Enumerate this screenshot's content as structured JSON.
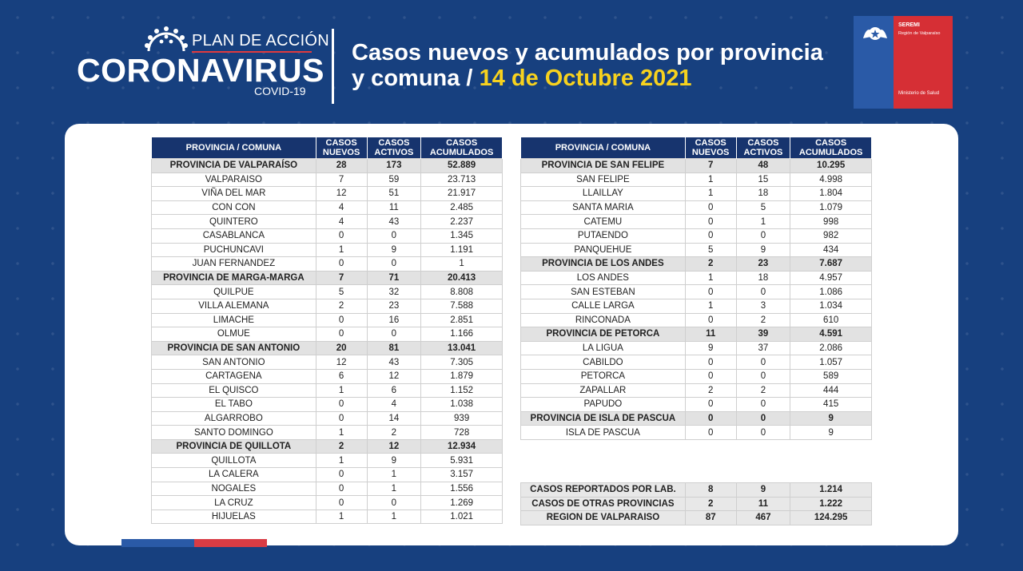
{
  "header": {
    "logo": {
      "plan": "PLAN DE ACCIÓN",
      "main": "CORONAVIRUS",
      "sub": "COVID-19"
    },
    "title_line1": "Casos nuevos y acumulados por provincia",
    "title_line2_prefix": "y comuna /",
    "title_date": "14 de Octubre 2021",
    "seremi": {
      "name": "SEREMI",
      "region": "Región de Valparaíso",
      "ministry": "Ministerio de Salud"
    }
  },
  "columns": [
    "PROVINCIA / COMUNA",
    "CASOS NUEVOS",
    "CASOS ACTIVOS",
    "CASOS ACUMULADOS"
  ],
  "left_rows": [
    {
      "name": "PROVINCIA DE VALPARAÍSO",
      "nuevos": "28",
      "activos": "173",
      "acumulados": "52.889",
      "province": true
    },
    {
      "name": "VALPARAISO",
      "nuevos": "7",
      "activos": "59",
      "acumulados": "23.713"
    },
    {
      "name": "VIÑA DEL MAR",
      "nuevos": "12",
      "activos": "51",
      "acumulados": "21.917"
    },
    {
      "name": "CON CON",
      "nuevos": "4",
      "activos": "11",
      "acumulados": "2.485"
    },
    {
      "name": "QUINTERO",
      "nuevos": "4",
      "activos": "43",
      "acumulados": "2.237"
    },
    {
      "name": "CASABLANCA",
      "nuevos": "0",
      "activos": "0",
      "acumulados": "1.345"
    },
    {
      "name": "PUCHUNCAVI",
      "nuevos": "1",
      "activos": "9",
      "acumulados": "1.191"
    },
    {
      "name": "JUAN FERNANDEZ",
      "nuevos": "0",
      "activos": "0",
      "acumulados": "1"
    },
    {
      "name": "PROVINCIA DE MARGA-MARGA",
      "nuevos": "7",
      "activos": "71",
      "acumulados": "20.413",
      "province": true
    },
    {
      "name": "QUILPUE",
      "nuevos": "5",
      "activos": "32",
      "acumulados": "8.808"
    },
    {
      "name": "VILLA ALEMANA",
      "nuevos": "2",
      "activos": "23",
      "acumulados": "7.588"
    },
    {
      "name": "LIMACHE",
      "nuevos": "0",
      "activos": "16",
      "acumulados": "2.851"
    },
    {
      "name": "OLMUE",
      "nuevos": "0",
      "activos": "0",
      "acumulados": "1.166"
    },
    {
      "name": "PROVINCIA DE SAN ANTONIO",
      "nuevos": "20",
      "activos": "81",
      "acumulados": "13.041",
      "province": true
    },
    {
      "name": "SAN ANTONIO",
      "nuevos": "12",
      "activos": "43",
      "acumulados": "7.305"
    },
    {
      "name": "CARTAGENA",
      "nuevos": "6",
      "activos": "12",
      "acumulados": "1.879"
    },
    {
      "name": "EL QUISCO",
      "nuevos": "1",
      "activos": "6",
      "acumulados": "1.152"
    },
    {
      "name": "EL TABO",
      "nuevos": "0",
      "activos": "4",
      "acumulados": "1.038"
    },
    {
      "name": "ALGARROBO",
      "nuevos": "0",
      "activos": "14",
      "acumulados": "939"
    },
    {
      "name": "SANTO DOMINGO",
      "nuevos": "1",
      "activos": "2",
      "acumulados": "728"
    },
    {
      "name": "PROVINCIA DE QUILLOTA",
      "nuevos": "2",
      "activos": "12",
      "acumulados": "12.934",
      "province": true
    },
    {
      "name": "QUILLOTA",
      "nuevos": "1",
      "activos": "9",
      "acumulados": "5.931"
    },
    {
      "name": "LA CALERA",
      "nuevos": "0",
      "activos": "1",
      "acumulados": "3.157"
    },
    {
      "name": "NOGALES",
      "nuevos": "0",
      "activos": "1",
      "acumulados": "1.556"
    },
    {
      "name": "LA CRUZ",
      "nuevos": "0",
      "activos": "0",
      "acumulados": "1.269"
    },
    {
      "name": "HIJUELAS",
      "nuevos": "1",
      "activos": "1",
      "acumulados": "1.021"
    }
  ],
  "right_rows": [
    {
      "name": "PROVINCIA DE SAN FELIPE",
      "nuevos": "7",
      "activos": "48",
      "acumulados": "10.295",
      "province": true
    },
    {
      "name": "SAN FELIPE",
      "nuevos": "1",
      "activos": "15",
      "acumulados": "4.998"
    },
    {
      "name": "LLAILLAY",
      "nuevos": "1",
      "activos": "18",
      "acumulados": "1.804"
    },
    {
      "name": "SANTA MARIA",
      "nuevos": "0",
      "activos": "5",
      "acumulados": "1.079"
    },
    {
      "name": "CATEMU",
      "nuevos": "0",
      "activos": "1",
      "acumulados": "998"
    },
    {
      "name": "PUTAENDO",
      "nuevos": "0",
      "activos": "0",
      "acumulados": "982"
    },
    {
      "name": "PANQUEHUE",
      "nuevos": "5",
      "activos": "9",
      "acumulados": "434"
    },
    {
      "name": "PROVINCIA DE LOS ANDES",
      "nuevos": "2",
      "activos": "23",
      "acumulados": "7.687",
      "province": true
    },
    {
      "name": "LOS ANDES",
      "nuevos": "1",
      "activos": "18",
      "acumulados": "4.957"
    },
    {
      "name": "SAN ESTEBAN",
      "nuevos": "0",
      "activos": "0",
      "acumulados": "1.086"
    },
    {
      "name": "CALLE LARGA",
      "nuevos": "1",
      "activos": "3",
      "acumulados": "1.034"
    },
    {
      "name": "RINCONADA",
      "nuevos": "0",
      "activos": "2",
      "acumulados": "610"
    },
    {
      "name": "PROVINCIA DE PETORCA",
      "nuevos": "11",
      "activos": "39",
      "acumulados": "4.591",
      "province": true
    },
    {
      "name": "LA LIGUA",
      "nuevos": "9",
      "activos": "37",
      "acumulados": "2.086"
    },
    {
      "name": "CABILDO",
      "nuevos": "0",
      "activos": "0",
      "acumulados": "1.057"
    },
    {
      "name": "PETORCA",
      "nuevos": "0",
      "activos": "0",
      "acumulados": "589"
    },
    {
      "name": "ZAPALLAR",
      "nuevos": "2",
      "activos": "2",
      "acumulados": "444"
    },
    {
      "name": "PAPUDO",
      "nuevos": "0",
      "activos": "0",
      "acumulados": "415"
    },
    {
      "name": "PROVINCIA DE ISLA DE PASCUA",
      "nuevos": "0",
      "activos": "0",
      "acumulados": "9",
      "province": true
    },
    {
      "name": "ISLA DE PASCUA",
      "nuevos": "0",
      "activos": "0",
      "acumulados": "9"
    }
  ],
  "summary_rows": [
    {
      "name": "CASOS REPORTADOS POR LAB.",
      "nuevos": "8",
      "activos": "9",
      "acumulados": "1.214"
    },
    {
      "name": "CASOS DE OTRAS PROVINCIAS",
      "nuevos": "2",
      "activos": "11",
      "acumulados": "1.222"
    },
    {
      "name": "REGION DE VALPARAISO",
      "nuevos": "87",
      "activos": "467",
      "acumulados": "124.295"
    }
  ],
  "colors": {
    "background": "#17407f",
    "header_cell": "#17346e",
    "date_yellow": "#f7d21e",
    "seremi_red": "#d62f35",
    "seremi_blue": "#2a5aa7"
  }
}
